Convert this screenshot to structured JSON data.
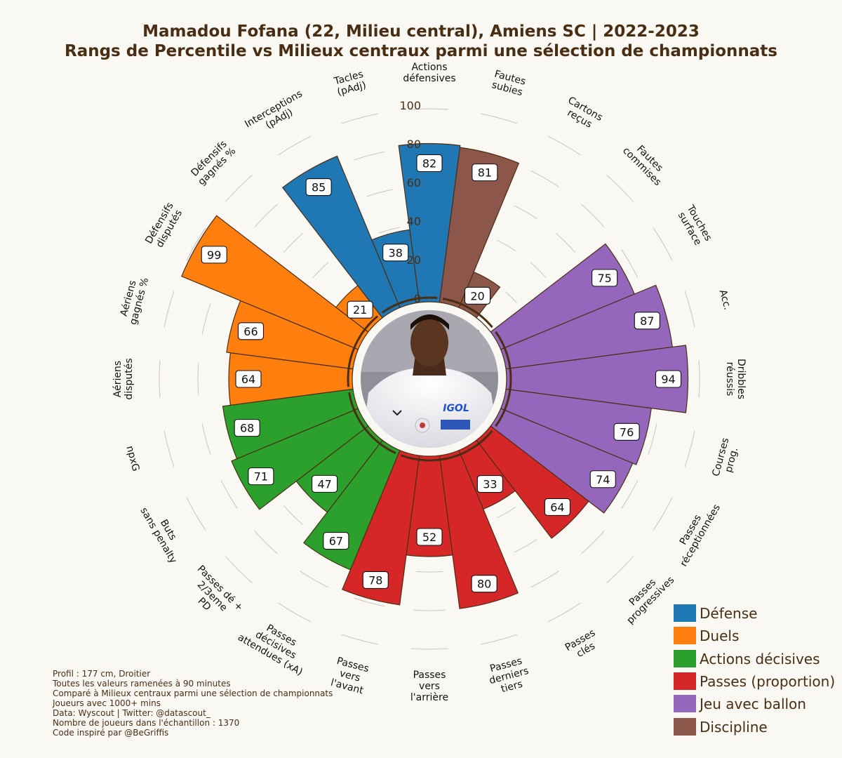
{
  "title_line1": "Mamadou Fofana (22, Milieu central), Amiens SC | 2022-2023",
  "title_line2": "Rangs de Percentile vs Milieux centraux parmi une sélection de championnats",
  "footer": [
    "Profil : 177 cm, Droitier",
    "Toutes les valeurs ramenées à 90 minutes",
    "Comparé à Milieux centraux parmi une sélection de championnats",
    "Joueurs avec 1000+ mins",
    "Data: Wyscout | Twitter: @datascout_",
    "Nombre de joueurs dans l'échantillon : 1370",
    "Code inspiré par @BeGriffis"
  ],
  "colors": {
    "background": "#faf8f3",
    "text": "#4a2e14",
    "Défense": "#1f77b4",
    "Duels": "#ff7f0e",
    "Actions décisives": "#2ca02c",
    "Passes (proportion)": "#d62728",
    "Jeu avec ballon": "#9467bd",
    "Discipline": "#8c564b"
  },
  "chart_data": {
    "type": "polar-bar",
    "radial_range": [
      0,
      100
    ],
    "radial_ticks": [
      0,
      20,
      40,
      60,
      80,
      100
    ],
    "legend": [
      "Défense",
      "Duels",
      "Actions décisives",
      "Passes (proportion)",
      "Jeu avec ballon",
      "Discipline"
    ],
    "legend_position": "bottom-right",
    "categories": [
      {
        "label": "Fautes\nsubies",
        "group": "Discipline",
        "value": 81
      },
      {
        "label": "Cartons\nreçus",
        "group": "Discipline",
        "value": 20
      },
      {
        "label": "Fautes\ncommises",
        "group": "Discipline",
        "value": 0
      },
      {
        "label": "Touches\nsurface",
        "group": "Jeu avec ballon",
        "value": 75
      },
      {
        "label": "Acc.",
        "group": "Jeu avec ballon",
        "value": 87
      },
      {
        "label": "Dribbles\nréussis",
        "group": "Jeu avec ballon",
        "value": 94
      },
      {
        "label": "Courses\nprog.",
        "group": "Jeu avec ballon",
        "value": 76
      },
      {
        "label": "Passes\nréceptionnées",
        "group": "Jeu avec ballon",
        "value": 74
      },
      {
        "label": "Passes\nprogressives",
        "group": "Passes (proportion)",
        "value": 64
      },
      {
        "label": "Passes\nclés",
        "group": "Passes (proportion)",
        "value": 33
      },
      {
        "label": "Passes\nderniers\ntiers",
        "group": "Passes (proportion)",
        "value": 80
      },
      {
        "label": "Passes\nvers\nl'arrière",
        "group": "Passes (proportion)",
        "value": 52
      },
      {
        "label": "Passes\nvers\nl'avant",
        "group": "Passes (proportion)",
        "value": 78
      },
      {
        "label": "Passes\ndécisives\nattendues (xA)",
        "group": "Actions décisives",
        "value": 67
      },
      {
        "label": "Passes dé +\n2/3eme\nPD",
        "group": "Actions décisives",
        "value": 47
      },
      {
        "label": "Buts\nsans penalty",
        "group": "Actions décisives",
        "value": 71
      },
      {
        "label": "npxG",
        "group": "Actions décisives",
        "value": 68
      },
      {
        "label": "Aériens\ndisputés",
        "group": "Duels",
        "value": 64
      },
      {
        "label": "Aériens\ngagnés %",
        "group": "Duels",
        "value": 66
      },
      {
        "label": "Défensifs\ndisputés",
        "group": "Duels",
        "value": 99
      },
      {
        "label": "Défensifs\ngagnés %",
        "group": "Duels",
        "value": 21
      },
      {
        "label": "Interceptions\n(pAdj)",
        "group": "Défense",
        "value": 85
      },
      {
        "label": "Tacles\n(pAdj)",
        "group": "Défense",
        "value": 38
      },
      {
        "label": "Actions\ndéfensives",
        "group": "Défense",
        "value": 82
      }
    ]
  }
}
